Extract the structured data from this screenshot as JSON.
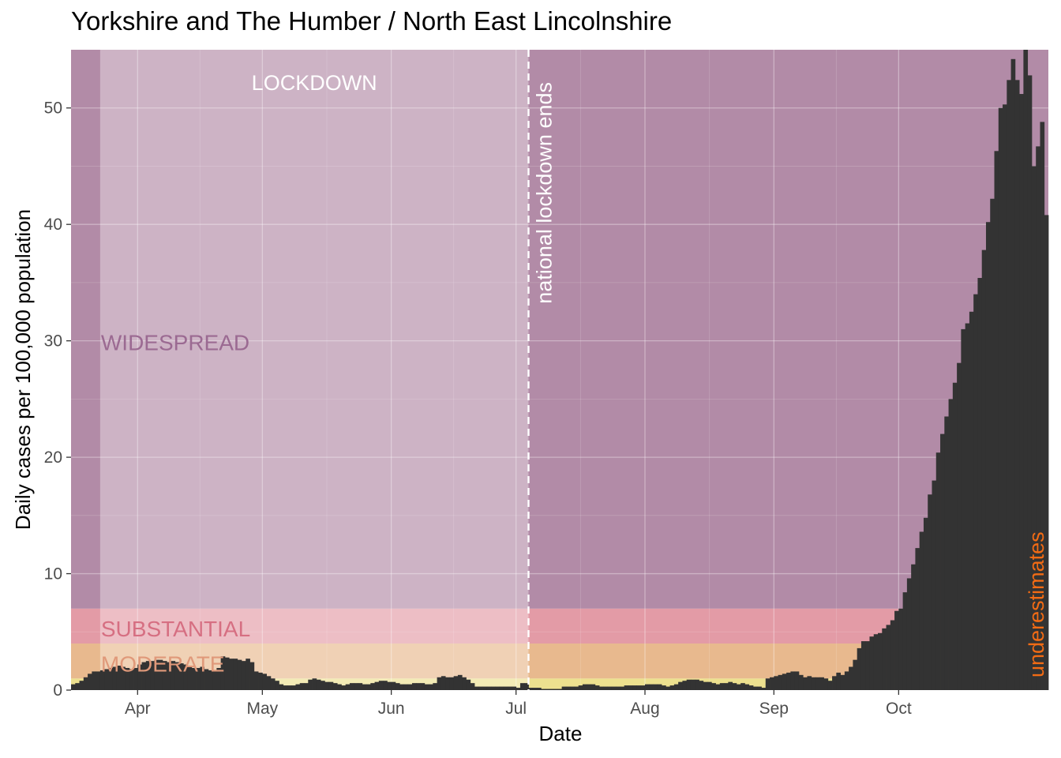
{
  "chart_data": {
    "type": "bar",
    "title": "Yorkshire and The Humber / North East Lincolnshire",
    "xlabel": "Date",
    "ylabel": "Daily cases per 100,000 population",
    "x_start": "2020-03-16",
    "ylim": [
      0,
      55
    ],
    "y_ticks": [
      0,
      10,
      20,
      30,
      40,
      50
    ],
    "x_ticks": [
      {
        "date": "2020-04-01",
        "label": "Apr"
      },
      {
        "date": "2020-05-01",
        "label": "May"
      },
      {
        "date": "2020-06-01",
        "label": "Jun"
      },
      {
        "date": "2020-07-01",
        "label": "Jul"
      },
      {
        "date": "2020-08-01",
        "label": "Aug"
      },
      {
        "date": "2020-09-01",
        "label": "Sep"
      },
      {
        "date": "2020-10-01",
        "label": "Oct"
      }
    ],
    "grid": true,
    "bar_color": "#333333",
    "values": [
      0.5,
      0.6,
      0.8,
      1.1,
      1.4,
      1.6,
      1.6,
      1.7,
      1.8,
      1.9,
      2.0,
      2.1,
      2.0,
      1.9,
      1.8,
      1.9,
      2.2,
      2.4,
      2.5,
      2.5,
      2.6,
      2.6,
      2.5,
      2.4,
      2.5,
      2.4,
      2.3,
      2.2,
      2.0,
      1.9,
      1.9,
      2.0,
      1.8,
      1.7,
      1.7,
      1.9,
      2.9,
      2.8,
      2.7,
      2.7,
      2.6,
      2.5,
      2.7,
      2.4,
      1.6,
      1.5,
      1.4,
      1.2,
      1.0,
      0.8,
      0.5,
      0.4,
      0.4,
      0.4,
      0.5,
      0.6,
      0.6,
      0.9,
      1.0,
      0.9,
      0.8,
      0.7,
      0.7,
      0.6,
      0.5,
      0.4,
      0.5,
      0.6,
      0.6,
      0.6,
      0.5,
      0.5,
      0.6,
      0.7,
      0.8,
      0.8,
      0.7,
      0.7,
      0.6,
      0.5,
      0.5,
      0.5,
      0.6,
      0.6,
      0.6,
      0.5,
      0.5,
      0.6,
      1.1,
      1.2,
      1.1,
      1.1,
      1.2,
      1.3,
      1.1,
      0.9,
      0.6,
      0.3,
      0.3,
      0.3,
      0.3,
      0.3,
      0.3,
      0.3,
      0.3,
      0.3,
      0.3,
      0.2,
      0.6,
      0.6,
      0.2,
      0.2,
      0.2,
      0.1,
      0.1,
      0.1,
      0.1,
      0.1,
      0.3,
      0.3,
      0.3,
      0.3,
      0.4,
      0.5,
      0.5,
      0.5,
      0.4,
      0.3,
      0.3,
      0.3,
      0.3,
      0.3,
      0.3,
      0.4,
      0.4,
      0.4,
      0.4,
      0.4,
      0.5,
      0.5,
      0.5,
      0.5,
      0.4,
      0.3,
      0.4,
      0.5,
      0.7,
      0.8,
      0.9,
      0.9,
      0.9,
      0.8,
      0.7,
      0.7,
      0.6,
      0.5,
      0.6,
      0.6,
      0.7,
      0.6,
      0.5,
      0.6,
      0.5,
      0.4,
      0.3,
      0.3,
      0.2,
      1.0,
      1.1,
      1.2,
      1.3,
      1.4,
      1.5,
      1.6,
      1.6,
      1.3,
      1.1,
      1.2,
      1.1,
      1.1,
      1.1,
      1.0,
      0.8,
      1.2,
      1.5,
      1.3,
      1.6,
      2.0,
      2.6,
      3.6,
      4.2,
      4.2,
      4.6,
      4.8,
      4.9,
      5.3,
      5.6,
      6.0,
      6.8,
      7.0,
      8.4,
      9.6,
      10.8,
      12.2,
      13.6,
      14.8,
      16.8,
      18.0,
      20.4,
      22.0,
      23.5,
      25.0,
      26.4,
      28.1,
      31.0,
      31.5,
      32.5,
      34.0,
      35.4,
      37.8,
      40.2,
      42.2,
      46.3,
      50.0,
      50.3,
      52.4,
      54.2,
      52.4,
      51.2,
      55.0,
      52.8,
      45.0,
      46.7,
      48.8,
      40.8
    ],
    "bands": [
      {
        "label": "",
        "from": 0,
        "to": 1,
        "color": "#ede08f"
      },
      {
        "label": "MODERATE",
        "from": 1,
        "to": 4,
        "color": "#e8b98e",
        "label_color": "#e0997a"
      },
      {
        "label": "SUBSTANTIAL",
        "from": 4,
        "to": 7,
        "color": "#e39ba6",
        "label_color": "#d66f82"
      },
      {
        "label": "WIDESPREAD",
        "from": 7,
        "to": 55,
        "color": "#b28ba7",
        "label_color": "#9b6a92"
      }
    ],
    "lockdown_period": {
      "label": "LOCKDOWN",
      "from": "2020-03-23",
      "to": "2020-07-04",
      "color": "#ffffff"
    },
    "vline": {
      "date": "2020-07-04",
      "label": "national lockdown ends",
      "color": "#ffffff"
    },
    "underestimates": {
      "label": "underestimates",
      "color": "#f26b14"
    }
  }
}
